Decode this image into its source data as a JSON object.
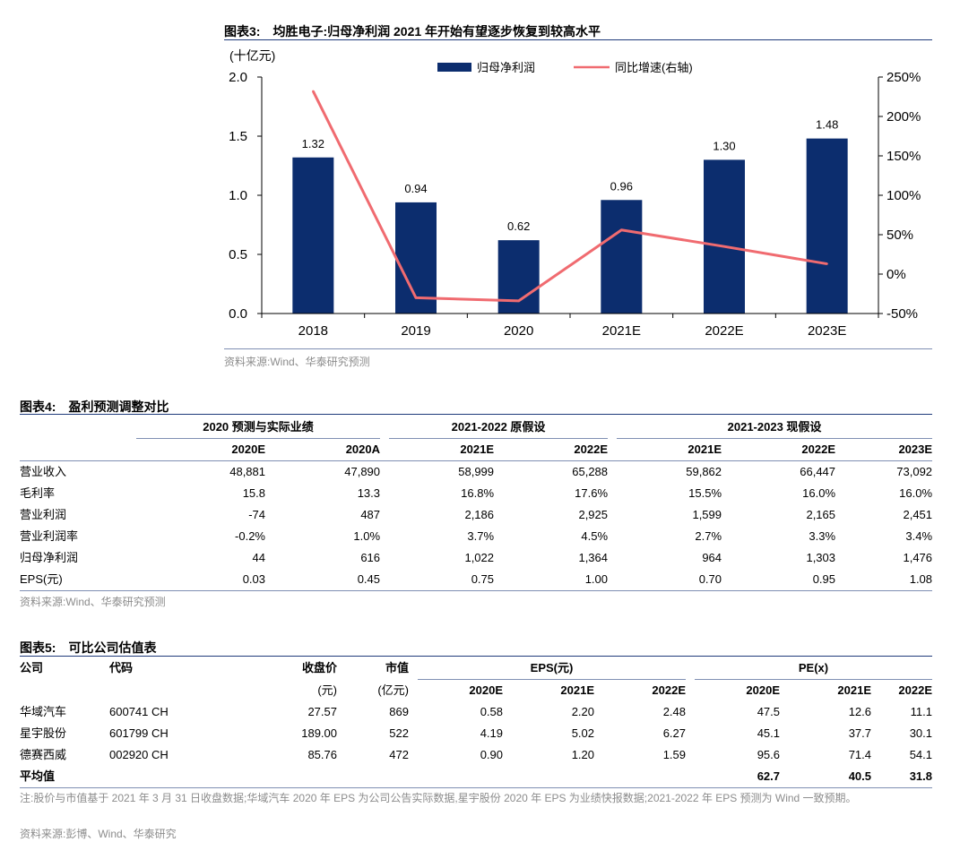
{
  "fig3": {
    "title_num": "图表3:",
    "title_text": "均胜电子:归母净利润 2021 年开始有望逐步恢复到较高水平",
    "unit_label": "(十亿元)",
    "source": "资料来源:Wind、华泰研究预测"
  },
  "chart_data": {
    "type": "bar",
    "categories": [
      "2018",
      "2019",
      "2020",
      "2021E",
      "2022E",
      "2023E"
    ],
    "series": [
      {
        "name": "归母净利润",
        "kind": "bar",
        "axis": "left",
        "values": [
          1.32,
          0.94,
          0.62,
          0.96,
          1.3,
          1.48
        ],
        "color": "#0c2d6e"
      },
      {
        "name": "同比增速(右轴)",
        "kind": "line",
        "axis": "right",
        "values": [
          232,
          -30,
          -34,
          56,
          35,
          13
        ],
        "color": "#f06b70"
      }
    ],
    "data_labels": [
      "1.32",
      "0.94",
      "0.62",
      "0.96",
      "1.30",
      "1.48"
    ],
    "ylabel": "(十亿元)",
    "ylim": [
      0,
      2.0
    ],
    "yticks": [
      "0.0",
      "0.5",
      "1.0",
      "1.5",
      "2.0"
    ],
    "y2lim": [
      -50,
      250
    ],
    "y2ticks": [
      "-50%",
      "0%",
      "50%",
      "100%",
      "150%",
      "200%",
      "250%"
    ],
    "legend_position": "top-center",
    "grid": false
  },
  "fig4": {
    "title_num": "图表4:",
    "title_text": "盈利预测调整对比",
    "groups": [
      "2020 预测与实际业绩",
      "2021-2022 原假设",
      "2021-2023 现假设"
    ],
    "columns": [
      "2020E",
      "2020A",
      "2021E",
      "2022E",
      "2021E",
      "2022E",
      "2023E"
    ],
    "rows": [
      {
        "label": "营业收入",
        "values": [
          "48,881",
          "47,890",
          "58,999",
          "65,288",
          "59,862",
          "66,447",
          "73,092"
        ]
      },
      {
        "label": "毛利率",
        "values": [
          "15.8",
          "13.3",
          "16.8%",
          "17.6%",
          "15.5%",
          "16.0%",
          "16.0%"
        ]
      },
      {
        "label": "营业利润",
        "values": [
          "-74",
          "487",
          "2,186",
          "2,925",
          "1,599",
          "2,165",
          "2,451"
        ]
      },
      {
        "label": "营业利润率",
        "values": [
          "-0.2%",
          "1.0%",
          "3.7%",
          "4.5%",
          "2.7%",
          "3.3%",
          "3.4%"
        ]
      },
      {
        "label": "归母净利润",
        "values": [
          "44",
          "616",
          "1,022",
          "1,364",
          "964",
          "1,303",
          "1,476"
        ]
      },
      {
        "label": "EPS(元)",
        "values": [
          "0.03",
          "0.45",
          "0.75",
          "1.00",
          "0.70",
          "0.95",
          "1.08"
        ]
      }
    ],
    "source": "资料来源:Wind、华泰研究预测"
  },
  "fig5": {
    "title_num": "图表5:",
    "title_text": "可比公司估值表",
    "header1": {
      "company": "公司",
      "code": "代码",
      "price": "收盘价",
      "mktcap": "市值",
      "eps_group": "EPS(元)",
      "pe_group": "PE(x)"
    },
    "header2": {
      "price_unit": "(元)",
      "mktcap_unit": "(亿元)",
      "years": [
        "2020E",
        "2021E",
        "2022E",
        "2020E",
        "2021E",
        "2022E"
      ]
    },
    "rows": [
      {
        "company": "华域汽车",
        "code": "600741 CH",
        "price": "27.57",
        "mktcap": "869",
        "eps": [
          "0.58",
          "2.20",
          "2.48"
        ],
        "pe": [
          "47.5",
          "12.6",
          "11.1"
        ]
      },
      {
        "company": "星宇股份",
        "code": "601799 CH",
        "price": "189.00",
        "mktcap": "522",
        "eps": [
          "4.19",
          "5.02",
          "6.27"
        ],
        "pe": [
          "45.1",
          "37.7",
          "30.1"
        ]
      },
      {
        "company": "德赛西威",
        "code": "002920 CH",
        "price": "85.76",
        "mktcap": "472",
        "eps": [
          "0.90",
          "1.20",
          "1.59"
        ],
        "pe": [
          "95.6",
          "71.4",
          "54.1"
        ]
      }
    ],
    "average": {
      "label": "平均值",
      "pe": [
        "62.7",
        "40.5",
        "31.8"
      ]
    },
    "note": "注:股价与市值基于 2021 年 3 月 31 日收盘数据;华域汽车 2020 年 EPS 为公司公告实际数据,星宇股份 2020 年 EPS 为业绩快报数据;2021-2022 年 EPS 预测为 Wind 一致预期。",
    "source": "资料来源:彭博、Wind、华泰研究"
  }
}
